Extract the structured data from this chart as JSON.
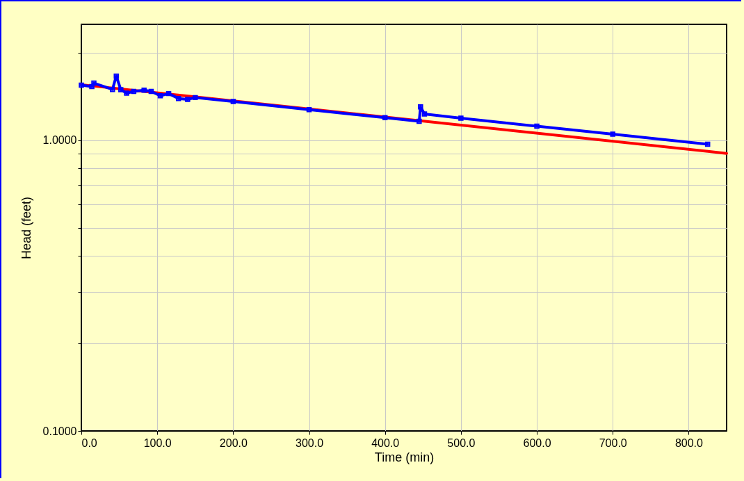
{
  "chart_data": {
    "type": "line",
    "xlabel": "Time (min)",
    "ylabel": "Head (feet)",
    "log": "y",
    "grid": true,
    "xlim": [
      0,
      850
    ],
    "ylim": [
      0.1,
      2.5
    ],
    "xticks": [
      {
        "value": 0,
        "label": "0.0"
      },
      {
        "value": 100,
        "label": "100.0"
      },
      {
        "value": 200,
        "label": "200.0"
      },
      {
        "value": 300,
        "label": "300.0"
      },
      {
        "value": 400,
        "label": "400.0"
      },
      {
        "value": 500,
        "label": "500.0"
      },
      {
        "value": 600,
        "label": "600.0"
      },
      {
        "value": 700,
        "label": "700.0"
      },
      {
        "value": 800,
        "label": "800.0"
      }
    ],
    "yticks": [
      {
        "value": 0.1,
        "label": "0.1000"
      },
      {
        "value": 0.2,
        "label": null
      },
      {
        "value": 0.3,
        "label": null
      },
      {
        "value": 0.4,
        "label": null
      },
      {
        "value": 0.5,
        "label": null
      },
      {
        "value": 0.6,
        "label": null
      },
      {
        "value": 0.7,
        "label": null
      },
      {
        "value": 0.8,
        "label": null
      },
      {
        "value": 0.9,
        "label": null
      },
      {
        "value": 1,
        "label": "1.0000"
      },
      {
        "value": 2,
        "label": null
      }
    ],
    "series": [
      {
        "color": "#ff0000",
        "line_style": "solid",
        "marker": "none",
        "x": [
          0,
          850
        ],
        "values": [
          1.55,
          0.9
        ]
      },
      {
        "color": "#0000ff",
        "line_style": "solid",
        "marker": "square",
        "x": [
          0,
          13.8,
          16.5,
          41,
          46,
          52,
          59.6,
          69,
          82.6,
          92,
          104,
          115,
          128,
          140,
          150,
          200,
          300,
          400,
          445,
          446.8,
          452,
          500,
          600,
          700,
          825
        ],
        "values": [
          1.545,
          1.527,
          1.57,
          1.493,
          1.66,
          1.49,
          1.45,
          1.47,
          1.485,
          1.47,
          1.42,
          1.445,
          1.39,
          1.38,
          1.4,
          1.357,
          1.273,
          1.194,
          1.16,
          1.3,
          1.23,
          1.189,
          1.116,
          1.048,
          0.968
        ]
      }
    ]
  }
}
